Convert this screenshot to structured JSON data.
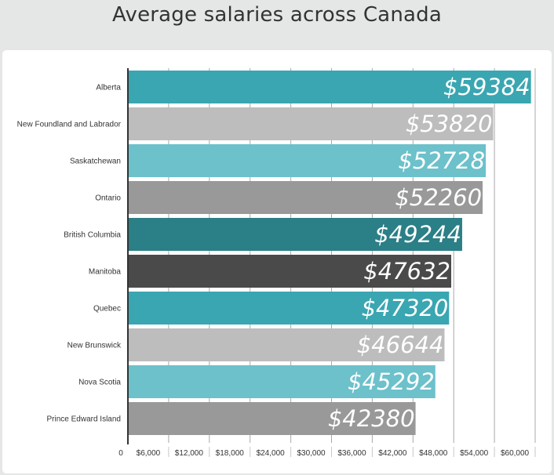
{
  "chart_data": {
    "type": "bar",
    "orientation": "horizontal",
    "title": "Average salaries across Canada",
    "categories": [
      "Alberta",
      "New Foundland and Labrador",
      "Saskatchewan",
      "Ontario",
      "British Columbia",
      "Manitoba",
      "Quebec",
      "New Brunswick",
      "Nova Scotia",
      "Prince Edward Island"
    ],
    "values": [
      59384,
      53820,
      52728,
      52260,
      49244,
      47632,
      47320,
      46644,
      45292,
      42380
    ],
    "data_labels": [
      "$59384",
      "$53820",
      "$52728",
      "$52260",
      "$49244",
      "$47632",
      "$47320",
      "$46644",
      "$45292",
      "$42380"
    ],
    "bar_colors": [
      "#3aa6b1",
      "#bdbdbd",
      "#6cc1cb",
      "#999999",
      "#2b7f86",
      "#4a4a4a",
      "#3aa6b1",
      "#bdbdbd",
      "#6cc1cb",
      "#999999"
    ],
    "x_ticks": [
      "0",
      "$6,000",
      "$12,000",
      "$18,000",
      "$24,000",
      "$30,000",
      "$36,000",
      "$42,000",
      "$48,000",
      "$54,000",
      "$60,000"
    ],
    "xlim": [
      0,
      60000
    ],
    "grid": true,
    "xlabel": "",
    "ylabel": ""
  }
}
